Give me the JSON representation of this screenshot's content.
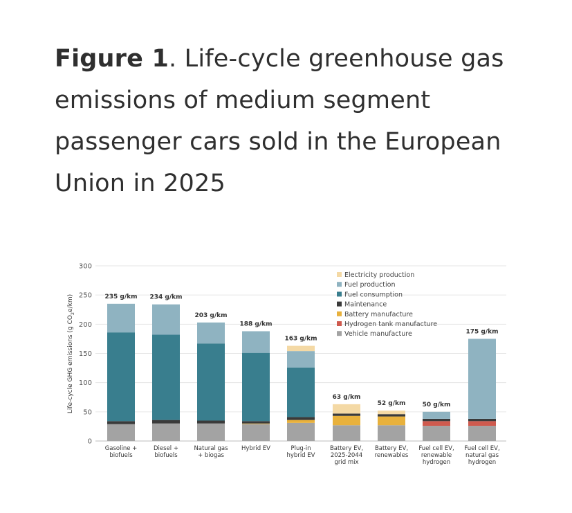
{
  "title": {
    "bold": "Figure 1",
    "rest": ". Life-cycle greenhouse gas emissions of medium segment passenger cars sold in the European Union in 2025"
  },
  "chart_data": {
    "type": "bar",
    "stacked": true,
    "ylabel": "Life-cycle GHG emissions (g CO2e/km)",
    "ylim": [
      0,
      300
    ],
    "yticks": [
      0,
      50,
      100,
      150,
      200,
      250,
      300
    ],
    "grid": true,
    "legend_position": "top-right",
    "categories": [
      [
        "Gasoline +",
        "biofuels"
      ],
      [
        "Diesel +",
        "biofuels"
      ],
      [
        "Natural gas",
        "+ biogas"
      ],
      [
        "Hybrid EV"
      ],
      [
        "Plug-in",
        "hybrid EV"
      ],
      [
        "Battery EV,",
        "2025-2044",
        "grid mix"
      ],
      [
        "Battery EV,",
        "renewables"
      ],
      [
        "Fuel cell EV,",
        "renewable",
        "hydrogen"
      ],
      [
        "Fuel cell EV,",
        "natural gas",
        "hydrogen"
      ]
    ],
    "totals_labels": [
      "235 g/km",
      "234 g/km",
      "203 g/km",
      "188 g/km",
      "163 g/km",
      "63 g/km",
      "52 g/km",
      "50 g/km",
      "175 g/km"
    ],
    "series": [
      {
        "name": "Vehicle manufacture",
        "color": "#a3a3a3",
        "values": [
          29,
          30,
          30,
          29,
          31,
          27,
          27,
          26,
          26
        ]
      },
      {
        "name": "Hydrogen tank manufacture",
        "color": "#cf5a4e",
        "values": [
          0,
          0,
          0,
          0,
          0,
          0,
          0,
          8,
          8
        ]
      },
      {
        "name": "Battery manufacture",
        "color": "#e8b13c",
        "values": [
          0,
          0,
          0,
          1,
          5,
          16,
          15,
          0,
          0
        ]
      },
      {
        "name": "Maintenance",
        "color": "#3a3a3a",
        "values": [
          5,
          6,
          5,
          4,
          5,
          4,
          4,
          4,
          4
        ]
      },
      {
        "name": "Fuel consumption",
        "color": "#397e8e",
        "values": [
          152,
          146,
          132,
          117,
          85,
          0,
          0,
          0,
          0
        ]
      },
      {
        "name": "Fuel production",
        "color": "#8fb3c1",
        "values": [
          49,
          52,
          36,
          37,
          28,
          0,
          0,
          12,
          137
        ]
      },
      {
        "name": "Electricity production",
        "color": "#f4d9a5",
        "values": [
          0,
          0,
          0,
          0,
          9,
          16,
          6,
          0,
          0
        ]
      }
    ],
    "legend_order": [
      "Electricity production",
      "Fuel production",
      "Fuel consumption",
      "Maintenance",
      "Battery manufacture",
      "Hydrogen tank manufacture",
      "Vehicle manufacture"
    ]
  }
}
